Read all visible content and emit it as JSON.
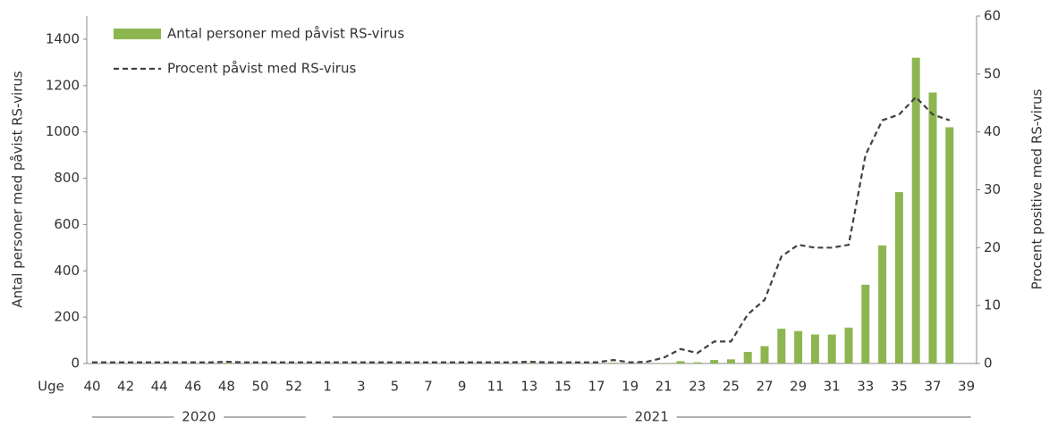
{
  "chart_data": {
    "type": "bar",
    "y_label": "Antal personer med påvist RS-virus",
    "y2_label": "Procent positive med RS-virus",
    "x_label": "Uge",
    "years": [
      "2020",
      "2021"
    ],
    "categories": [
      "40",
      null,
      "42",
      null,
      "44",
      null,
      "46",
      null,
      "48",
      null,
      "50",
      null,
      "52",
      null,
      "1",
      null,
      "3",
      null,
      "5",
      null,
      "7",
      null,
      "9",
      null,
      "11",
      null,
      "13",
      null,
      "15",
      null,
      "17",
      null,
      "19",
      null,
      "21",
      null,
      "23",
      null,
      "25",
      null,
      "27",
      null,
      "29",
      null,
      "31",
      null,
      "33",
      null,
      "35",
      null,
      "37",
      null,
      "39"
    ],
    "ylim": [
      0,
      1500
    ],
    "yticks": [
      0,
      200,
      400,
      600,
      800,
      1000,
      1200,
      1400
    ],
    "y2lim": [
      0,
      60
    ],
    "y2ticks": [
      0,
      10,
      20,
      30,
      40,
      50,
      60
    ],
    "series": [
      {
        "name": "Antal personer med påvist RS-virus",
        "type": "bar",
        "color": "#8db651",
        "values": [
          0,
          0,
          0,
          0,
          0,
          0,
          0,
          0,
          3,
          0,
          0,
          0,
          0,
          0,
          0,
          0,
          0,
          0,
          0,
          0,
          0,
          0,
          0,
          0,
          0,
          0,
          3,
          0,
          0,
          0,
          0,
          3,
          0,
          0,
          2,
          10,
          5,
          15,
          18,
          50,
          75,
          150,
          140,
          125,
          125,
          155,
          340,
          510,
          740,
          1320,
          1170,
          1020,
          null
        ]
      },
      {
        "name": "Procent påvist med RS-virus",
        "type": "line",
        "axis": "y2",
        "color": "#404040",
        "dashed": true,
        "values": [
          0.2,
          0.2,
          0.2,
          0.2,
          0.2,
          0.2,
          0.2,
          0.2,
          0.3,
          0.2,
          0.2,
          0.2,
          0.2,
          0.2,
          0.2,
          0.2,
          0.2,
          0.2,
          0.2,
          0.2,
          0.2,
          0.2,
          0.2,
          0.2,
          0.2,
          0.2,
          0.3,
          0.2,
          0.2,
          0.2,
          0.2,
          0.6,
          0.2,
          0.3,
          1,
          2.5,
          1.8,
          3.8,
          3.8,
          8.5,
          11,
          18.5,
          20.5,
          20,
          20,
          20.5,
          36,
          42,
          43,
          46,
          43,
          42,
          null
        ]
      }
    ]
  }
}
